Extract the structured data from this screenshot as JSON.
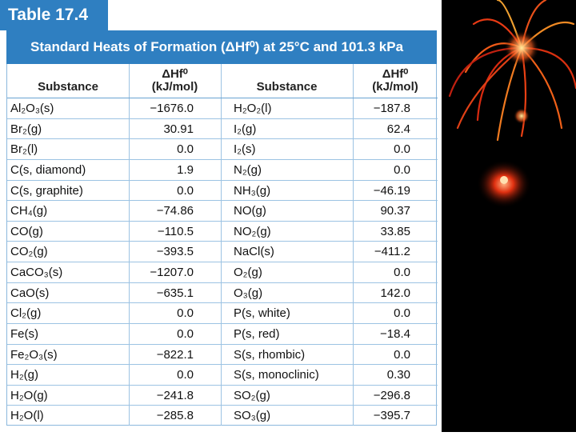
{
  "table_label": "Table 17.4",
  "title": "Standard Heats of Formation (ΔHf⁰) at 25°C and 101.3 kPa",
  "table": {
    "columns": [
      {
        "name": "Substance"
      },
      {
        "name": "ΔHf⁰",
        "unit": "(kJ/mol)"
      },
      {
        "name": "Substance"
      },
      {
        "name": "ΔHf⁰",
        "unit": "(kJ/mol)"
      }
    ],
    "rows": [
      [
        "Al₂O₃(s)",
        "−1676.0",
        "H₂O₂(l)",
        "−187.8"
      ],
      [
        "Br₂(g)",
        "30.91",
        "I₂(g)",
        "62.4"
      ],
      [
        "Br₂(l)",
        "0.0",
        "I₂(s)",
        "0.0"
      ],
      [
        "C(s, diamond)",
        "1.9",
        "N₂(g)",
        "0.0"
      ],
      [
        "C(s, graphite)",
        "0.0",
        "NH₃(g)",
        "−46.19"
      ],
      [
        "CH₄(g)",
        "−74.86",
        "NO(g)",
        "90.37"
      ],
      [
        "CO(g)",
        "−110.5",
        "NO₂(g)",
        "33.85"
      ],
      [
        "CO₂(g)",
        "−393.5",
        "NaCl(s)",
        "−411.2"
      ],
      [
        "CaCO₃(s)",
        "−1207.0",
        "O₂(g)",
        "0.0"
      ],
      [
        "CaO(s)",
        "−635.1",
        "O₃(g)",
        "142.0"
      ],
      [
        "Cl₂(g)",
        "0.0",
        "P(s, white)",
        "0.0"
      ],
      [
        "Fe(s)",
        "0.0",
        "P(s, red)",
        "−18.4"
      ],
      [
        "Fe₂O₃(s)",
        "−822.1",
        "S(s, rhombic)",
        "0.0"
      ],
      [
        "H₂(g)",
        "0.0",
        "S(s, monoclinic)",
        "0.30"
      ],
      [
        "H₂O(g)",
        "−241.8",
        "SO₂(g)",
        "−296.8"
      ],
      [
        "H₂O(l)",
        "−285.8",
        "SO₃(g)",
        "−395.7"
      ]
    ]
  }
}
